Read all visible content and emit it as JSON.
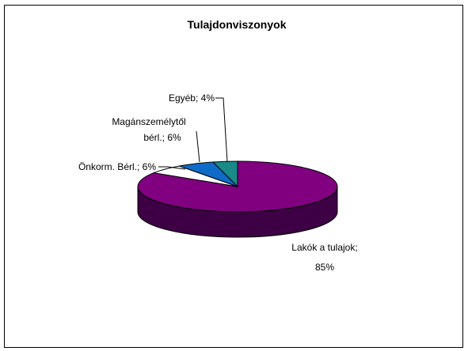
{
  "chart_data": {
    "type": "pie",
    "title": "Tulajdonviszonyok",
    "slices": [
      {
        "label": "Lakók a tulajok",
        "value": 85,
        "color": "#800080",
        "side_color": "#3d0045"
      },
      {
        "label": "Önkorm. Bérl.",
        "value": 6,
        "color": "#ffffff",
        "side_color": "#d0d0d0"
      },
      {
        "label": "Magánszemélytől bérl.",
        "value": 6,
        "color": "#0f6bc8",
        "side_color": "#083a70"
      },
      {
        "label": "Egyéb",
        "value": 4,
        "color": "#1a8a88",
        "side_color": "#0b4b4a"
      }
    ],
    "data_labels": [
      {
        "lines": [
          "Lakók a tulajok;",
          "85%"
        ]
      },
      {
        "lines": [
          "Önkorm. Bérl.; 6%"
        ]
      },
      {
        "lines": [
          "Magánszemélytől",
          "bérl.; 6%"
        ]
      },
      {
        "lines": [
          "Egyéb; 4%"
        ]
      }
    ]
  }
}
